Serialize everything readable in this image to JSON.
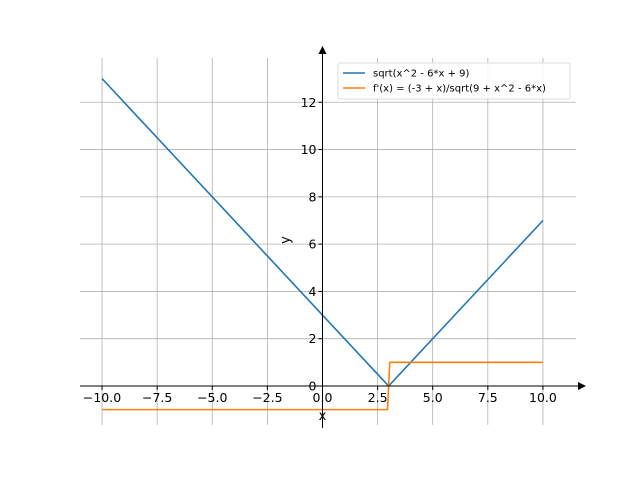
{
  "chart_data": {
    "type": "line",
    "title": "",
    "xlabel": "x",
    "ylabel": "y",
    "xlim": [
      -11,
      11.5
    ],
    "ylim": [
      -1.65,
      14
    ],
    "grid": true,
    "legend_position": "top-right",
    "x_ticks": [
      -10.0,
      -7.5,
      -5.0,
      -2.5,
      0.0,
      2.5,
      5.0,
      7.5,
      10.0
    ],
    "x_tick_labels": [
      "−10.0",
      "−7.5",
      "−5.0",
      "−2.5",
      "0.0",
      "2.5",
      "5.0",
      "7.5",
      "10.0"
    ],
    "y_ticks": [
      0,
      2,
      4,
      6,
      8,
      10,
      12
    ],
    "y_tick_labels": [
      "0",
      "2",
      "4",
      "6",
      "8",
      "10",
      "12"
    ],
    "series": [
      {
        "name": "sqrt(x^2 - 6*x + 9)",
        "color": "#1f77b4",
        "points": [
          [
            -10,
            13
          ],
          [
            3,
            0
          ],
          [
            10,
            7
          ]
        ]
      },
      {
        "name": "f'(x) = (-3 + x)/sqrt(9 + x^2 - 6*x)",
        "color": "#ff7f0e",
        "points": [
          [
            -10,
            -1
          ],
          [
            2.95,
            -1
          ],
          [
            3.05,
            1
          ],
          [
            10,
            1
          ]
        ]
      }
    ]
  }
}
